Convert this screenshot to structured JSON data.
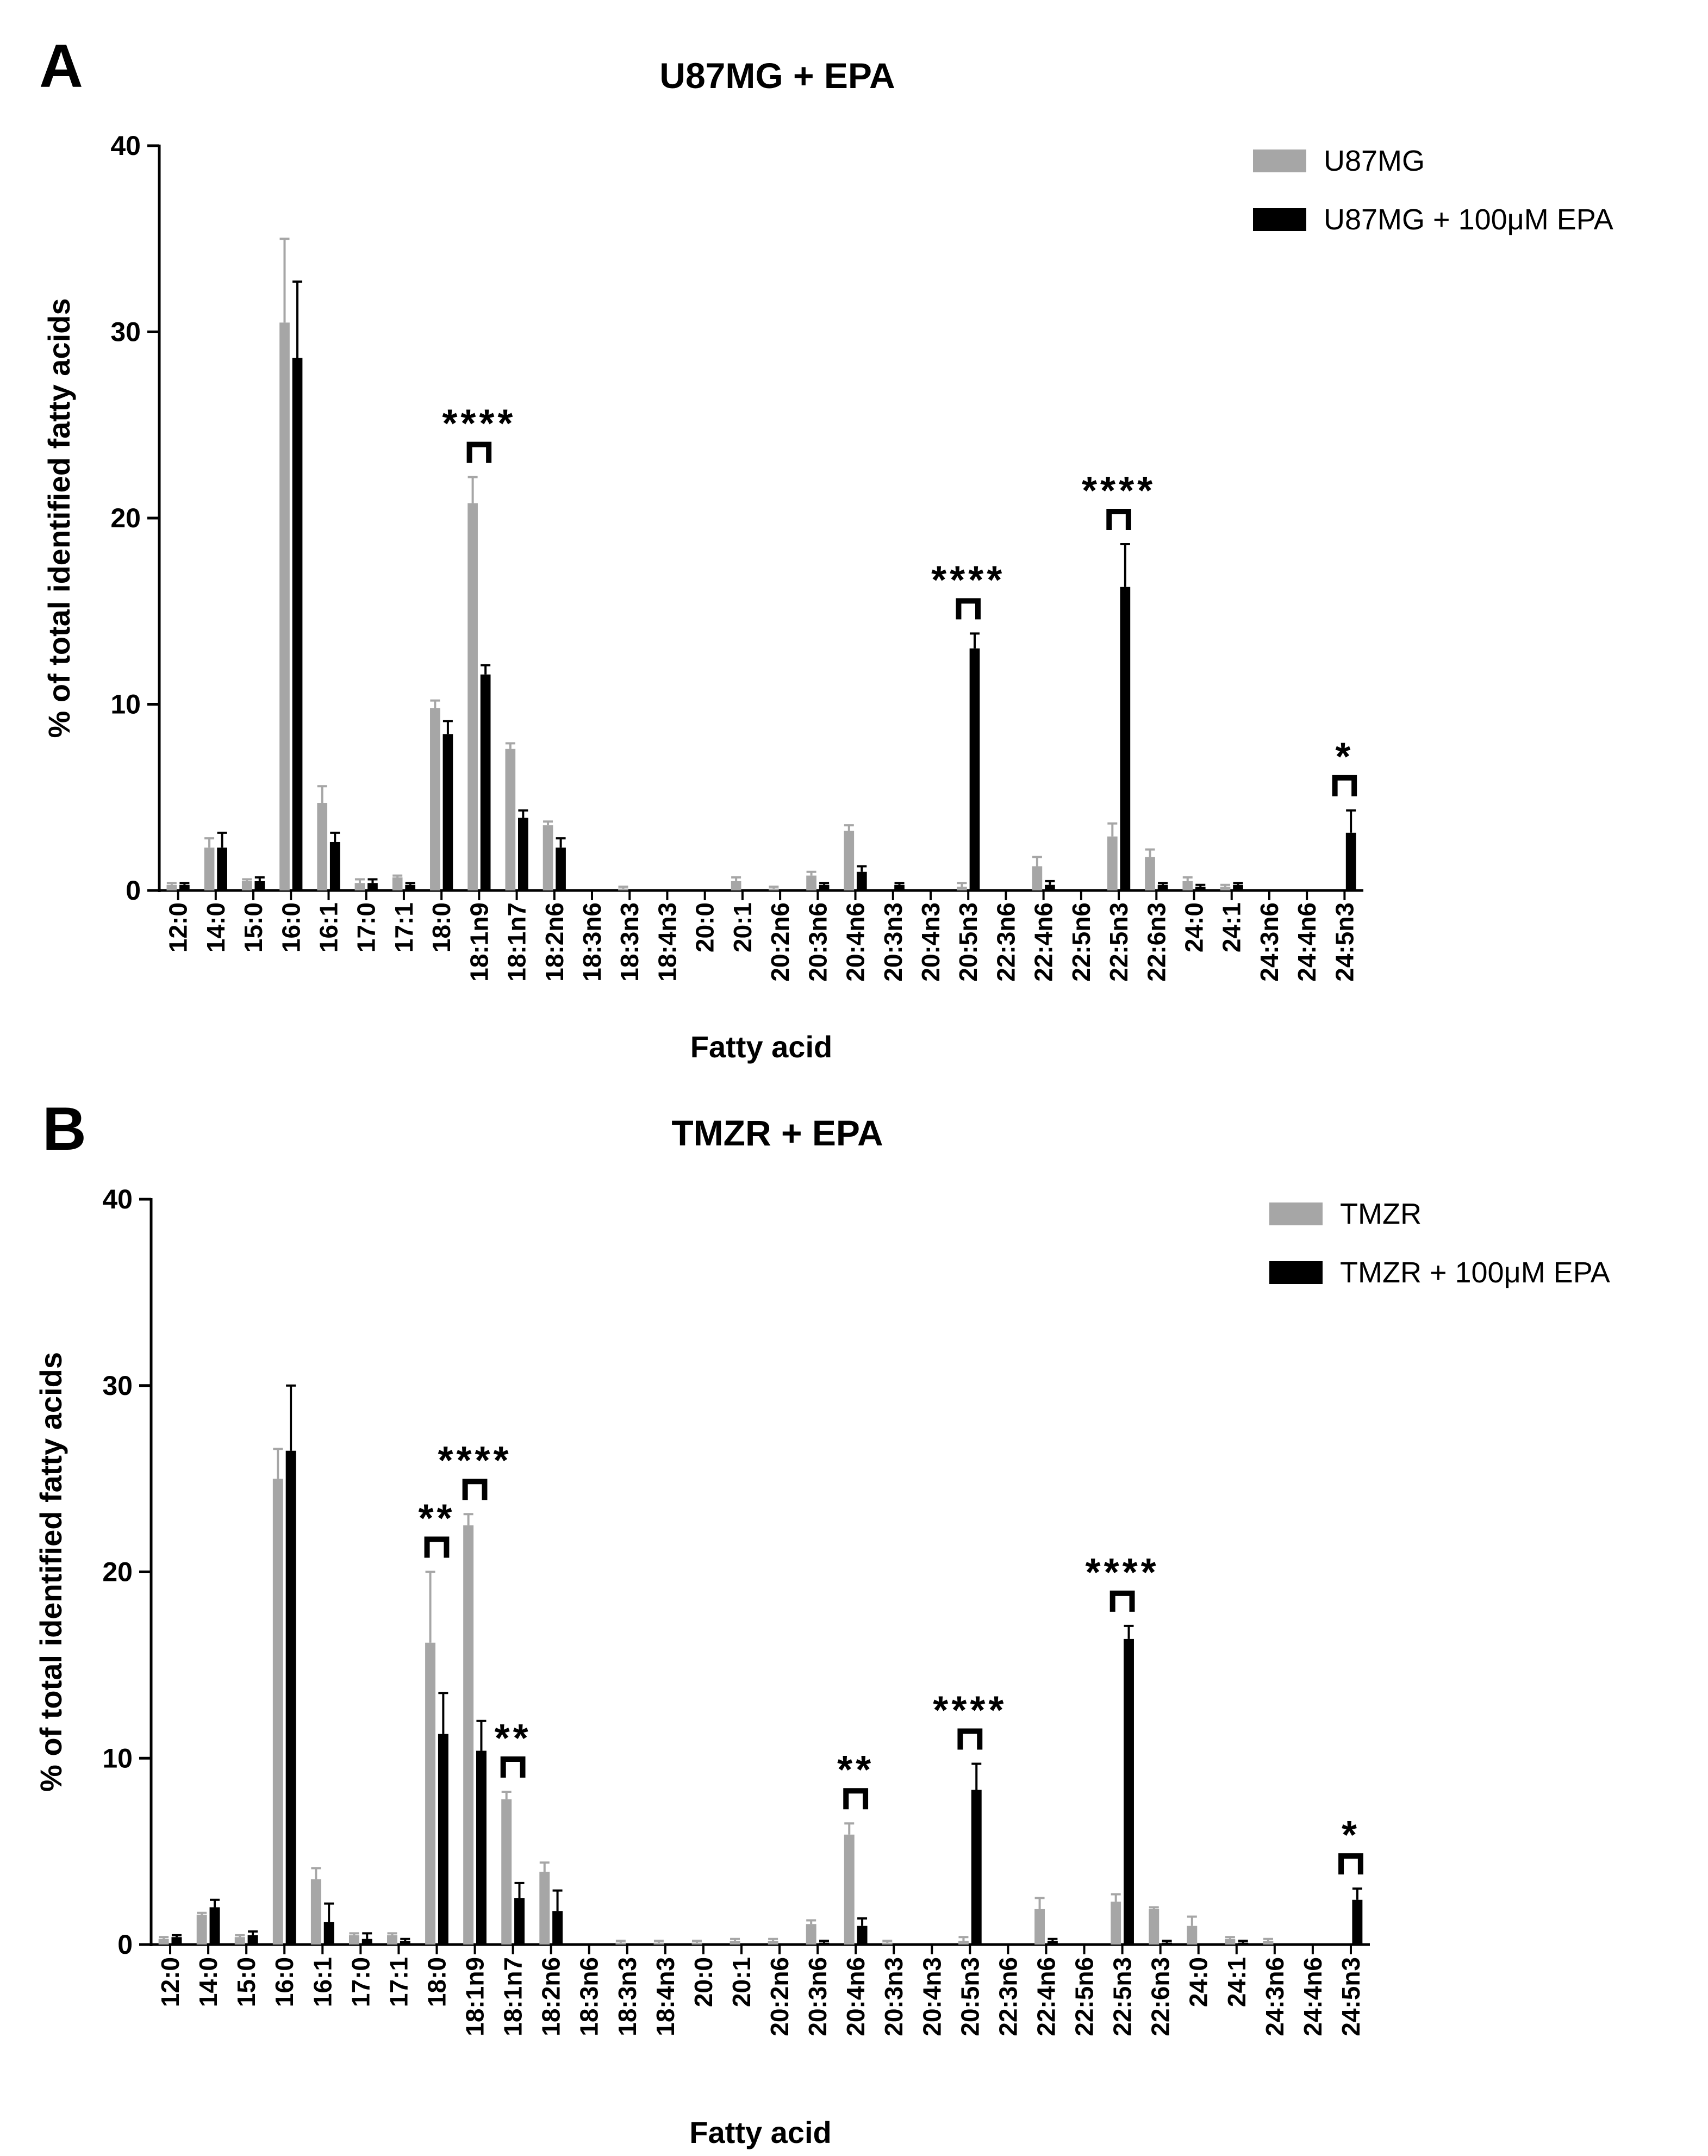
{
  "colors": {
    "control": "#a6a6a6",
    "epa": "#000000"
  },
  "fatty_acids": [
    "12:0",
    "14:0",
    "15:0",
    "16:0",
    "16:1",
    "17:0",
    "17:1",
    "18:0",
    "18:1n9",
    "18:1n7",
    "18:2n6",
    "18:3n6",
    "18:3n3",
    "18:4n3",
    "20:0",
    "20:1",
    "20:2n6",
    "20:3n6",
    "20:4n6",
    "20:3n3",
    "20:4n3",
    "20:5n3",
    "22:3n6",
    "22:4n6",
    "22:5n6",
    "22:5n3",
    "22:6n3",
    "24:0",
    "24:1",
    "24:3n6",
    "24:4n6",
    "24:5n3"
  ],
  "chart_data": [
    {
      "panel": "A",
      "type": "bar",
      "title": "U87MG + EPA",
      "xlabel": "Fatty acid",
      "ylabel": "% of total identified fatty acids",
      "ylim": [
        0,
        40
      ],
      "yticks": [
        "0",
        "10",
        "20",
        "30",
        "40"
      ],
      "legend_position": "top-right",
      "series": [
        {
          "name": "U87MG",
          "values": [
            0.3,
            2.3,
            0.5,
            30.5,
            4.7,
            0.4,
            0.7,
            9.8,
            20.8,
            7.6,
            3.5,
            0.0,
            0.1,
            0.0,
            0.0,
            0.5,
            0.1,
            0.8,
            3.2,
            0.0,
            0.0,
            0.2,
            0.0,
            1.3,
            0.0,
            2.9,
            1.8,
            0.5,
            0.2,
            0.0,
            0.0,
            0.0
          ],
          "errors": [
            0.1,
            0.5,
            0.1,
            4.5,
            0.9,
            0.2,
            0.1,
            0.4,
            1.4,
            0.3,
            0.2,
            0.0,
            0.1,
            0.0,
            0.0,
            0.2,
            0.1,
            0.2,
            0.3,
            0.0,
            0.0,
            0.2,
            0.0,
            0.5,
            0.0,
            0.7,
            0.4,
            0.2,
            0.1,
            0.0,
            0.0,
            0.0
          ]
        },
        {
          "name": "U87MG + 100μM EPA",
          "values": [
            0.3,
            2.3,
            0.5,
            28.6,
            2.6,
            0.4,
            0.3,
            8.4,
            11.6,
            3.9,
            2.3,
            0.0,
            0.0,
            0.0,
            0.0,
            0.0,
            0.0,
            0.3,
            1.0,
            0.3,
            0.0,
            13.0,
            0.0,
            0.3,
            0.0,
            16.3,
            0.3,
            0.2,
            0.3,
            0.0,
            0.0,
            3.1
          ],
          "errors": [
            0.1,
            0.8,
            0.2,
            4.1,
            0.5,
            0.2,
            0.1,
            0.7,
            0.5,
            0.4,
            0.5,
            0.0,
            0.0,
            0.0,
            0.0,
            0.0,
            0.0,
            0.1,
            0.3,
            0.1,
            0.0,
            0.8,
            0.0,
            0.2,
            0.0,
            2.3,
            0.1,
            0.1,
            0.1,
            0.0,
            0.0,
            1.2
          ]
        }
      ],
      "significance": [
        {
          "index": 8,
          "label": "****"
        },
        {
          "index": 21,
          "label": "****"
        },
        {
          "index": 25,
          "label": "****"
        },
        {
          "index": 31,
          "label": "*"
        }
      ]
    },
    {
      "panel": "B",
      "type": "bar",
      "title": "TMZR + EPA",
      "xlabel": "Fatty acid",
      "ylabel": "% of total identified fatty acids",
      "ylim": [
        0,
        40
      ],
      "yticks": [
        "0",
        "10",
        "20",
        "30",
        "40"
      ],
      "legend_position": "top-right",
      "series": [
        {
          "name": "TMZR",
          "values": [
            0.3,
            1.6,
            0.4,
            25.0,
            3.5,
            0.5,
            0.5,
            16.2,
            22.5,
            7.8,
            3.9,
            0.0,
            0.1,
            0.1,
            0.1,
            0.2,
            0.2,
            1.1,
            5.9,
            0.1,
            0.0,
            0.2,
            0.0,
            1.9,
            0.0,
            2.3,
            1.9,
            1.0,
            0.3,
            0.2,
            0.0,
            0.0
          ],
          "errors": [
            0.1,
            0.1,
            0.1,
            1.6,
            0.6,
            0.1,
            0.1,
            3.8,
            0.6,
            0.4,
            0.5,
            0.0,
            0.1,
            0.1,
            0.1,
            0.1,
            0.1,
            0.2,
            0.6,
            0.1,
            0.0,
            0.2,
            0.0,
            0.6,
            0.0,
            0.4,
            0.1,
            0.5,
            0.1,
            0.1,
            0.0,
            0.0
          ]
        },
        {
          "name": "TMZR + 100μM EPA",
          "values": [
            0.4,
            2.0,
            0.5,
            26.5,
            1.2,
            0.3,
            0.2,
            11.3,
            10.4,
            2.5,
            1.8,
            0.0,
            0.0,
            0.0,
            0.0,
            0.0,
            0.0,
            0.1,
            1.0,
            0.0,
            0.0,
            8.3,
            0.0,
            0.2,
            0.0,
            16.4,
            0.1,
            0.0,
            0.1,
            0.0,
            0.0,
            2.4
          ],
          "errors": [
            0.1,
            0.4,
            0.2,
            3.5,
            1.0,
            0.3,
            0.1,
            2.2,
            1.6,
            0.8,
            1.1,
            0.0,
            0.0,
            0.0,
            0.0,
            0.0,
            0.0,
            0.1,
            0.4,
            0.0,
            0.0,
            1.4,
            0.0,
            0.1,
            0.0,
            0.7,
            0.1,
            0.0,
            0.1,
            0.0,
            0.0,
            0.6
          ]
        }
      ],
      "significance": [
        {
          "index": 7,
          "label": "**"
        },
        {
          "index": 8,
          "label": "****"
        },
        {
          "index": 9,
          "label": "**"
        },
        {
          "index": 18,
          "label": "**"
        },
        {
          "index": 21,
          "label": "****"
        },
        {
          "index": 25,
          "label": "****"
        },
        {
          "index": 31,
          "label": "*"
        }
      ]
    }
  ]
}
